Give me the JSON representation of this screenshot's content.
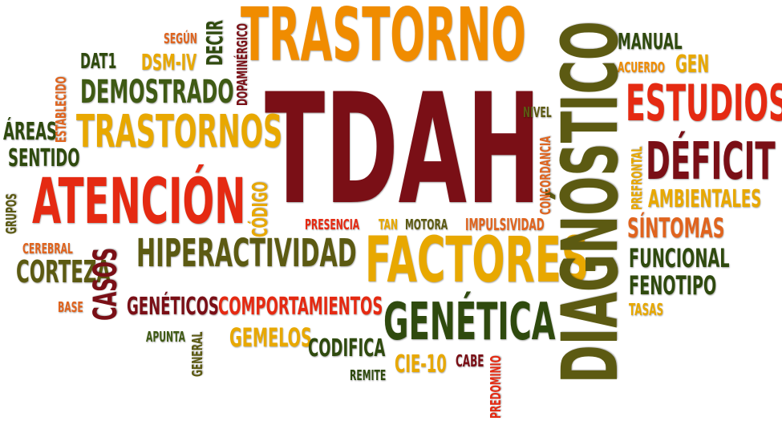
{
  "colors": {
    "orange": "#f08c00",
    "darkorange": "#e0641e",
    "red": "#e52a12",
    "maroon": "#7a0f16",
    "olive": "#5c5a12",
    "green": "#3f5a14",
    "darkgreen": "#2f4a0e",
    "gold": "#e8a800"
  },
  "words": [
    {
      "id": "trastorno",
      "text": "TRASTORNO",
      "color": "orange"
    },
    {
      "id": "tdah",
      "text": "TDAH",
      "color": "maroon"
    },
    {
      "id": "diagnostico",
      "text": "DIAGNÓSTICO",
      "color": "olive"
    },
    {
      "id": "factores",
      "text": "FACTORES",
      "color": "gold"
    },
    {
      "id": "atencion",
      "text": "ATENCIÓN",
      "color": "red"
    },
    {
      "id": "trastornos",
      "text": "TRASTORNOS",
      "color": "gold"
    },
    {
      "id": "hiperactividad",
      "text": "HIPERACTIVIDAD",
      "color": "olive"
    },
    {
      "id": "genetica",
      "text": "GENÉTICA",
      "color": "darkgreen"
    },
    {
      "id": "estudios",
      "text": "ESTUDIOS",
      "color": "red"
    },
    {
      "id": "deficit",
      "text": "DÉFICIT",
      "color": "maroon"
    },
    {
      "id": "demostrado",
      "text": "DEMOSTRADO",
      "color": "green"
    },
    {
      "id": "comportamientos",
      "text": "COMPORTAMIENTOS",
      "color": "red"
    },
    {
      "id": "geneticos",
      "text": "GENÉTICOS",
      "color": "maroon"
    },
    {
      "id": "casos",
      "text": "CASOS",
      "color": "maroon"
    },
    {
      "id": "corteza",
      "text": "CORTEZA",
      "color": "olive"
    },
    {
      "id": "sintomas",
      "text": "SÍNTOMAS",
      "color": "darkorange"
    },
    {
      "id": "funcional",
      "text": "FUNCIONAL",
      "color": "darkgreen"
    },
    {
      "id": "fenotipo",
      "text": "FENOTIPO",
      "color": "darkgreen"
    },
    {
      "id": "ambientales",
      "text": "AMBIENTALES",
      "color": "gold"
    },
    {
      "id": "gemelos",
      "text": "GEMELOS",
      "color": "gold"
    },
    {
      "id": "codifica",
      "text": "CODIFICA",
      "color": "darkgreen"
    },
    {
      "id": "cie10",
      "text": "CIE-10",
      "color": "gold"
    },
    {
      "id": "manual",
      "text": "MANUAL",
      "color": "darkgreen"
    },
    {
      "id": "gen",
      "text": "GEN",
      "color": "gold"
    },
    {
      "id": "acuerdo",
      "text": "ACUERDO",
      "color": "orange"
    },
    {
      "id": "dsmiv",
      "text": "DSM-IV",
      "color": "gold"
    },
    {
      "id": "dat1",
      "text": "DAT1",
      "color": "darkgreen"
    },
    {
      "id": "segun",
      "text": "SEGÚN",
      "color": "darkorange"
    },
    {
      "id": "decir",
      "text": "DECIR",
      "color": "darkgreen"
    },
    {
      "id": "dopaminergico",
      "text": "DOPAMINÉRGICO",
      "color": "maroon"
    },
    {
      "id": "areas",
      "text": "ÁREAS",
      "color": "darkgreen"
    },
    {
      "id": "sentido",
      "text": "SENTIDO",
      "color": "darkgreen"
    },
    {
      "id": "establecido",
      "text": "ESTABLECIDO",
      "color": "darkorange"
    },
    {
      "id": "grupos",
      "text": "GRUPOS",
      "color": "olive"
    },
    {
      "id": "cerebral",
      "text": "CEREBRAL",
      "color": "darkorange"
    },
    {
      "id": "base",
      "text": "BASE",
      "color": "darkorange"
    },
    {
      "id": "codigo",
      "text": "CÓDIGO",
      "color": "gold"
    },
    {
      "id": "presencia",
      "text": "PRESENCIA",
      "color": "red"
    },
    {
      "id": "tan",
      "text": "TAN",
      "color": "gold"
    },
    {
      "id": "motora",
      "text": "MOTORA",
      "color": "olive"
    },
    {
      "id": "impulsividad",
      "text": "IMPULSIVIDAD",
      "color": "darkorange"
    },
    {
      "id": "nivel",
      "text": "NIVEL",
      "color": "olive"
    },
    {
      "id": "concordancia",
      "text": "CONCORDANCIA",
      "color": "darkorange"
    },
    {
      "id": "prefrontal",
      "text": "PREFRONTAL",
      "color": "gold"
    },
    {
      "id": "tasas",
      "text": "TASAS",
      "color": "gold"
    },
    {
      "id": "apunta",
      "text": "APUNTA",
      "color": "green"
    },
    {
      "id": "general",
      "text": "GENERAL",
      "color": "olive"
    },
    {
      "id": "remite",
      "text": "REMITE",
      "color": "darkgreen"
    },
    {
      "id": "cabe",
      "text": "CABE",
      "color": "maroon"
    },
    {
      "id": "predominio",
      "text": "PREDOMINIO",
      "color": "red"
    }
  ]
}
